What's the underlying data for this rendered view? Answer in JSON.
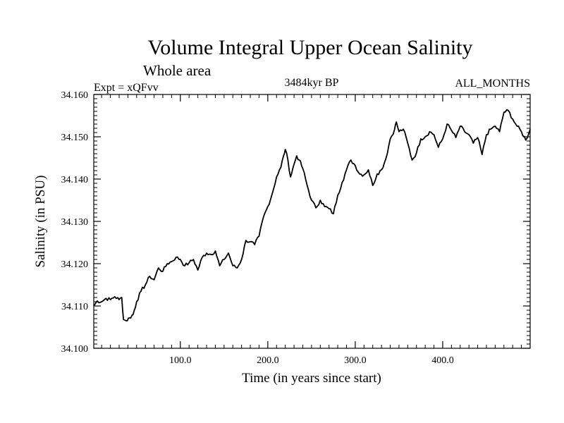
{
  "chart_data": {
    "type": "line",
    "title": "Volume Integral Upper Ocean Salinity",
    "subtitle": "Whole area",
    "experiment": "Expt = xQFvv",
    "period": "3484kyr BP",
    "months": "ALL_MONTHS",
    "xlabel": "Time (in years since start)",
    "ylabel": "Salinity (in PSU)",
    "xlim": [
      1,
      500
    ],
    "ylim": [
      34.1,
      34.16
    ],
    "xticks": [
      100,
      200,
      300,
      400
    ],
    "xtick_labels": [
      "100.0",
      "200.0",
      "300.0",
      "400.0"
    ],
    "yticks": [
      34.1,
      34.11,
      34.12,
      34.13,
      34.14,
      34.15,
      34.16
    ],
    "ytick_labels": [
      "34.100",
      "34.110",
      "34.120",
      "34.130",
      "34.140",
      "34.150",
      "34.160"
    ],
    "grid": false,
    "series": [
      {
        "name": "Salinity",
        "color": "#000000",
        "x": [
          1,
          5,
          10,
          15,
          20,
          25,
          30,
          33,
          35,
          38,
          42,
          46,
          50,
          55,
          60,
          65,
          70,
          75,
          80,
          85,
          90,
          95,
          100,
          105,
          110,
          115,
          120,
          125,
          130,
          135,
          140,
          145,
          150,
          155,
          160,
          165,
          170,
          175,
          180,
          185,
          190,
          195,
          200,
          205,
          210,
          215,
          218,
          220,
          223,
          226,
          230,
          233,
          236,
          240,
          245,
          250,
          255,
          260,
          265,
          270,
          275,
          280,
          285,
          290,
          295,
          300,
          305,
          310,
          315,
          320,
          325,
          330,
          335,
          340,
          345,
          347,
          350,
          355,
          360,
          365,
          370,
          375,
          380,
          385,
          390,
          395,
          400,
          405,
          410,
          415,
          420,
          425,
          430,
          435,
          440,
          445,
          450,
          455,
          460,
          465,
          470,
          475,
          480,
          485,
          490,
          495,
          500
        ],
        "values": [
          34.11,
          34.1112,
          34.111,
          34.1118,
          34.1115,
          34.1122,
          34.1115,
          34.112,
          34.1068,
          34.1065,
          34.1072,
          34.108,
          34.111,
          34.1135,
          34.115,
          34.117,
          34.1162,
          34.119,
          34.1182,
          34.12,
          34.1205,
          34.1215,
          34.121,
          34.1195,
          34.1202,
          34.121,
          34.1185,
          34.1215,
          34.1225,
          34.1222,
          34.123,
          34.1195,
          34.121,
          34.1225,
          34.1195,
          34.119,
          34.121,
          34.1255,
          34.1252,
          34.1245,
          34.1265,
          34.131,
          34.1335,
          34.1365,
          34.1405,
          34.1428,
          34.1455,
          34.147,
          34.1445,
          34.1405,
          34.1435,
          34.1455,
          34.1445,
          34.1425,
          34.1385,
          34.135,
          34.1332,
          34.135,
          34.1335,
          34.133,
          34.1318,
          34.1362,
          34.1392,
          34.1422,
          34.1445,
          34.1432,
          34.1412,
          34.141,
          34.1422,
          34.1385,
          34.1412,
          34.1422,
          34.1448,
          34.1495,
          34.1518,
          34.1535,
          34.1512,
          34.1518,
          34.1485,
          34.1445,
          34.1462,
          34.1495,
          34.15,
          34.1512,
          34.1505,
          34.1475,
          34.1495,
          34.153,
          34.1515,
          34.1498,
          34.1525,
          34.1512,
          34.1505,
          34.1485,
          34.1498,
          34.1458,
          34.1505,
          34.1518,
          34.1525,
          34.1512,
          34.1558,
          34.1562,
          34.1542,
          34.1525,
          34.1512,
          34.1492,
          34.1518
        ]
      }
    ]
  }
}
